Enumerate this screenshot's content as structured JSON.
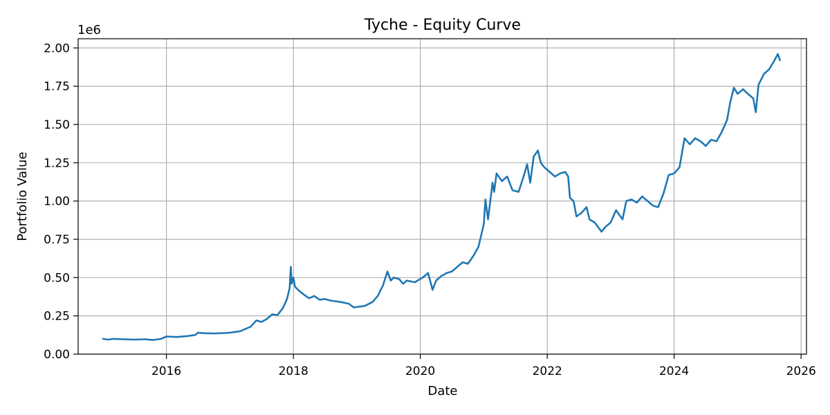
{
  "chart_data": {
    "type": "line",
    "title": "Tyche - Equity Curve",
    "xlabel": "Date",
    "ylabel": "Portfolio Value",
    "y_offset_label": "1e6",
    "y_multiplier": 1000000,
    "xlim": [
      "2014-08-11",
      "2026-02-01"
    ],
    "ylim": [
      0,
      2060000
    ],
    "x_ticks": [
      {
        "date": "2016-01-01",
        "label": "2016"
      },
      {
        "date": "2018-01-01",
        "label": "2018"
      },
      {
        "date": "2020-01-01",
        "label": "2020"
      },
      {
        "date": "2022-01-01",
        "label": "2022"
      },
      {
        "date": "2024-01-01",
        "label": "2024"
      },
      {
        "date": "2026-01-01",
        "label": "2026"
      }
    ],
    "y_ticks": [
      {
        "value": 0,
        "label": "0.00"
      },
      {
        "value": 250000,
        "label": "0.25"
      },
      {
        "value": 500000,
        "label": "0.50"
      },
      {
        "value": 750000,
        "label": "0.75"
      },
      {
        "value": 1000000,
        "label": "1.00"
      },
      {
        "value": 1250000,
        "label": "1.25"
      },
      {
        "value": 1500000,
        "label": "1.50"
      },
      {
        "value": 1750000,
        "label": "1.75"
      },
      {
        "value": 2000000,
        "label": "2.00"
      }
    ],
    "grid": true,
    "line_color": "#1f77b4",
    "series": [
      {
        "points": [
          [
            "2015-01-01",
            100000
          ],
          [
            "2015-02-01",
            95000
          ],
          [
            "2015-03-01",
            100000
          ],
          [
            "2015-05-01",
            97000
          ],
          [
            "2015-07-01",
            95000
          ],
          [
            "2015-09-01",
            97000
          ],
          [
            "2015-10-15",
            92000
          ],
          [
            "2015-12-01",
            100000
          ],
          [
            "2016-01-01",
            115000
          ],
          [
            "2016-03-01",
            112000
          ],
          [
            "2016-05-01",
            118000
          ],
          [
            "2016-06-15",
            125000
          ],
          [
            "2016-07-01",
            140000
          ],
          [
            "2016-08-01",
            137000
          ],
          [
            "2016-10-01",
            135000
          ],
          [
            "2016-12-01",
            138000
          ],
          [
            "2017-01-01",
            140000
          ],
          [
            "2017-03-01",
            150000
          ],
          [
            "2017-05-01",
            180000
          ],
          [
            "2017-06-01",
            220000
          ],
          [
            "2017-07-01",
            210000
          ],
          [
            "2017-08-01",
            230000
          ],
          [
            "2017-09-01",
            260000
          ],
          [
            "2017-10-01",
            255000
          ],
          [
            "2017-11-01",
            300000
          ],
          [
            "2017-11-25",
            360000
          ],
          [
            "2017-12-10",
            430000
          ],
          [
            "2017-12-17",
            570000
          ],
          [
            "2017-12-22",
            460000
          ],
          [
            "2018-01-01",
            500000
          ],
          [
            "2018-01-10",
            440000
          ],
          [
            "2018-02-06",
            410000
          ],
          [
            "2018-03-01",
            390000
          ],
          [
            "2018-04-01",
            365000
          ],
          [
            "2018-05-01",
            380000
          ],
          [
            "2018-06-01",
            355000
          ],
          [
            "2018-07-01",
            360000
          ],
          [
            "2018-08-01",
            350000
          ],
          [
            "2018-09-01",
            345000
          ],
          [
            "2018-10-01",
            340000
          ],
          [
            "2018-11-15",
            330000
          ],
          [
            "2018-12-15",
            305000
          ],
          [
            "2019-01-15",
            310000
          ],
          [
            "2019-02-15",
            315000
          ],
          [
            "2019-04-01",
            340000
          ],
          [
            "2019-05-01",
            380000
          ],
          [
            "2019-06-01",
            450000
          ],
          [
            "2019-06-26",
            540000
          ],
          [
            "2019-07-15",
            480000
          ],
          [
            "2019-08-01",
            500000
          ],
          [
            "2019-09-01",
            490000
          ],
          [
            "2019-09-25",
            460000
          ],
          [
            "2019-10-15",
            480000
          ],
          [
            "2019-12-01",
            470000
          ],
          [
            "2020-01-15",
            500000
          ],
          [
            "2020-02-15",
            530000
          ],
          [
            "2020-03-12",
            420000
          ],
          [
            "2020-04-01",
            480000
          ],
          [
            "2020-05-01",
            510000
          ],
          [
            "2020-06-01",
            530000
          ],
          [
            "2020-07-01",
            540000
          ],
          [
            "2020-08-01",
            570000
          ],
          [
            "2020-09-01",
            600000
          ],
          [
            "2020-10-01",
            590000
          ],
          [
            "2020-11-01",
            640000
          ],
          [
            "2020-12-01",
            700000
          ],
          [
            "2021-01-01",
            850000
          ],
          [
            "2021-01-10",
            1010000
          ],
          [
            "2021-01-25",
            880000
          ],
          [
            "2021-02-20",
            1120000
          ],
          [
            "2021-03-01",
            1060000
          ],
          [
            "2021-03-15",
            1180000
          ],
          [
            "2021-04-15",
            1130000
          ],
          [
            "2021-05-15",
            1160000
          ],
          [
            "2021-06-15",
            1070000
          ],
          [
            "2021-07-20",
            1060000
          ],
          [
            "2021-08-15",
            1150000
          ],
          [
            "2021-09-07",
            1240000
          ],
          [
            "2021-09-25",
            1120000
          ],
          [
            "2021-10-15",
            1290000
          ],
          [
            "2021-11-08",
            1330000
          ],
          [
            "2021-11-25",
            1250000
          ],
          [
            "2021-12-15",
            1220000
          ],
          [
            "2022-01-15",
            1190000
          ],
          [
            "2022-02-15",
            1160000
          ],
          [
            "2022-03-15",
            1180000
          ],
          [
            "2022-04-15",
            1190000
          ],
          [
            "2022-05-01",
            1160000
          ],
          [
            "2022-05-12",
            1020000
          ],
          [
            "2022-06-01",
            1000000
          ],
          [
            "2022-06-18",
            900000
          ],
          [
            "2022-07-15",
            920000
          ],
          [
            "2022-08-15",
            960000
          ],
          [
            "2022-09-01",
            880000
          ],
          [
            "2022-10-01",
            860000
          ],
          [
            "2022-11-09",
            800000
          ],
          [
            "2022-12-01",
            830000
          ],
          [
            "2023-01-01",
            860000
          ],
          [
            "2023-02-01",
            940000
          ],
          [
            "2023-03-10",
            880000
          ],
          [
            "2023-04-01",
            1000000
          ],
          [
            "2023-05-01",
            1010000
          ],
          [
            "2023-06-01",
            990000
          ],
          [
            "2023-07-01",
            1030000
          ],
          [
            "2023-08-01",
            1000000
          ],
          [
            "2023-09-01",
            970000
          ],
          [
            "2023-10-01",
            960000
          ],
          [
            "2023-11-01",
            1050000
          ],
          [
            "2023-12-01",
            1170000
          ],
          [
            "2024-01-01",
            1180000
          ],
          [
            "2024-02-01",
            1220000
          ],
          [
            "2024-03-01",
            1410000
          ],
          [
            "2024-04-01",
            1370000
          ],
          [
            "2024-05-01",
            1410000
          ],
          [
            "2024-06-01",
            1390000
          ],
          [
            "2024-07-01",
            1360000
          ],
          [
            "2024-08-01",
            1400000
          ],
          [
            "2024-09-01",
            1390000
          ],
          [
            "2024-10-01",
            1450000
          ],
          [
            "2024-11-01",
            1530000
          ],
          [
            "2024-11-20",
            1650000
          ],
          [
            "2024-12-10",
            1740000
          ],
          [
            "2025-01-01",
            1700000
          ],
          [
            "2025-02-01",
            1730000
          ],
          [
            "2025-03-01",
            1700000
          ],
          [
            "2025-04-01",
            1670000
          ],
          [
            "2025-04-15",
            1580000
          ],
          [
            "2025-05-01",
            1760000
          ],
          [
            "2025-06-01",
            1830000
          ],
          [
            "2025-07-01",
            1860000
          ],
          [
            "2025-08-01",
            1920000
          ],
          [
            "2025-08-20",
            1960000
          ],
          [
            "2025-09-01",
            1920000
          ]
        ]
      }
    ]
  }
}
